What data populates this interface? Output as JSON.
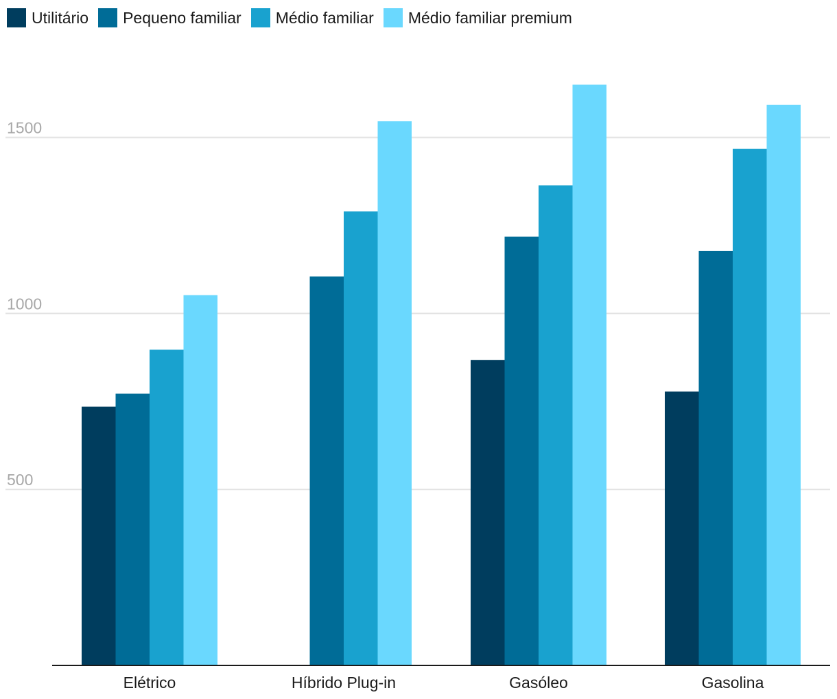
{
  "chart_data": {
    "type": "bar",
    "title": "",
    "xlabel": "",
    "ylabel": "",
    "categories": [
      "Elétrico",
      "Híbrido Plug-in",
      "Gasóleo",
      "Gasolina"
    ],
    "series": [
      {
        "name": "Utilitário",
        "color": "#003d5e",
        "values": [
          735,
          null,
          868,
          778
        ]
      },
      {
        "name": "Pequeno familiar",
        "color": "#006c97",
        "values": [
          772,
          1105,
          1218,
          1178
        ]
      },
      {
        "name": "Médio familiar",
        "color": "#19a2cf",
        "values": [
          897,
          1290,
          1364,
          1468
        ]
      },
      {
        "name": "Médio familiar premium",
        "color": "#6ad8fe",
        "values": [
          1052,
          1546,
          1650,
          1593
        ]
      }
    ],
    "ylim": [
      0,
      1730
    ],
    "yticks": [
      500,
      1000,
      1500
    ],
    "grid": true,
    "legend_position": "top-left"
  }
}
